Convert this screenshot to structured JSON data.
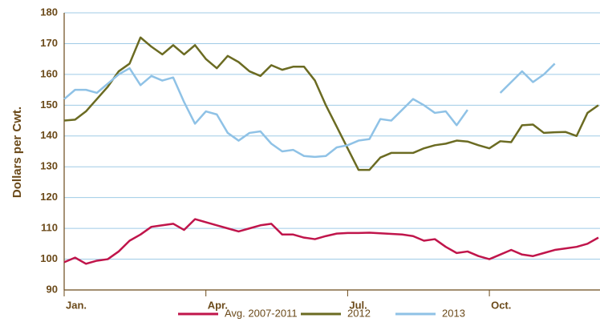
{
  "chart_data": {
    "type": "line",
    "y_label": "Dollars per Cwt.",
    "x": [
      0,
      1,
      2,
      3,
      4,
      5,
      6,
      7,
      8,
      9,
      10,
      11,
      12,
      13,
      14,
      15,
      16,
      17,
      18,
      19,
      20,
      21,
      22,
      23,
      24,
      25,
      26,
      27,
      28,
      29,
      30,
      31,
      32,
      33,
      34,
      35,
      36,
      37,
      38,
      39,
      40,
      41,
      42,
      43,
      44,
      45,
      46,
      47,
      48,
      49
    ],
    "xlim": [
      0,
      49
    ],
    "xticks": [
      {
        "value": 0,
        "label": "Jan."
      },
      {
        "value": 13,
        "label": "Apr."
      },
      {
        "value": 26,
        "label": "Jul."
      },
      {
        "value": 39,
        "label": "Oct."
      }
    ],
    "ylim": [
      90,
      180
    ],
    "yticks": [
      90,
      100,
      110,
      120,
      130,
      140,
      150,
      160,
      170,
      180
    ],
    "grid": true,
    "legend": "bottom",
    "series": [
      {
        "name": "Avg. 2007-2011",
        "color": "#c0154b",
        "values": [
          99,
          100.5,
          98.5,
          99.5,
          100,
          102.5,
          106,
          108,
          110.5,
          111,
          111.5,
          109.5,
          113,
          112,
          111,
          110,
          109,
          110,
          111,
          111.5,
          108,
          108,
          107,
          106.5,
          107.5,
          108.3,
          108.5,
          108.5,
          108.6,
          108.4,
          108.2,
          108,
          107.5,
          106,
          106.5,
          104,
          102,
          102.5,
          101,
          100,
          101.5,
          103,
          101.5,
          101,
          102,
          103,
          103.5,
          104,
          105,
          107
        ]
      },
      {
        "name": "2012",
        "color": "#6b6b22",
        "values": [
          145,
          145.3,
          148,
          152,
          156,
          161,
          163.5,
          172,
          169,
          166.5,
          169.5,
          166.5,
          169.5,
          165,
          162,
          166,
          164,
          161,
          159.5,
          163,
          161.5,
          162.5,
          162.5,
          158,
          150,
          143,
          136,
          129,
          129,
          133,
          134.5,
          134.5,
          134.5,
          136,
          137,
          137.5,
          138.5,
          138.2,
          137,
          136,
          138.3,
          138,
          143.5,
          143.7,
          141,
          141.2,
          141.3,
          140,
          147.5,
          150
        ]
      },
      {
        "name": "2013",
        "color": "#8fc2e6",
        "values": [
          152,
          155,
          155,
          154,
          157,
          160,
          162,
          156.5,
          159.5,
          158,
          159,
          151,
          144,
          148,
          147,
          141,
          138.5,
          141,
          141.5,
          137.5,
          135,
          135.5,
          133.5,
          133.2,
          133.5,
          136.3,
          137,
          138.5,
          139,
          145.5,
          145,
          148.5,
          152,
          150,
          147.5,
          148,
          143.5,
          148.5,
          null,
          null,
          154,
          157.5,
          161,
          157.5,
          160,
          163.5,
          null,
          null,
          null,
          null
        ]
      }
    ]
  }
}
